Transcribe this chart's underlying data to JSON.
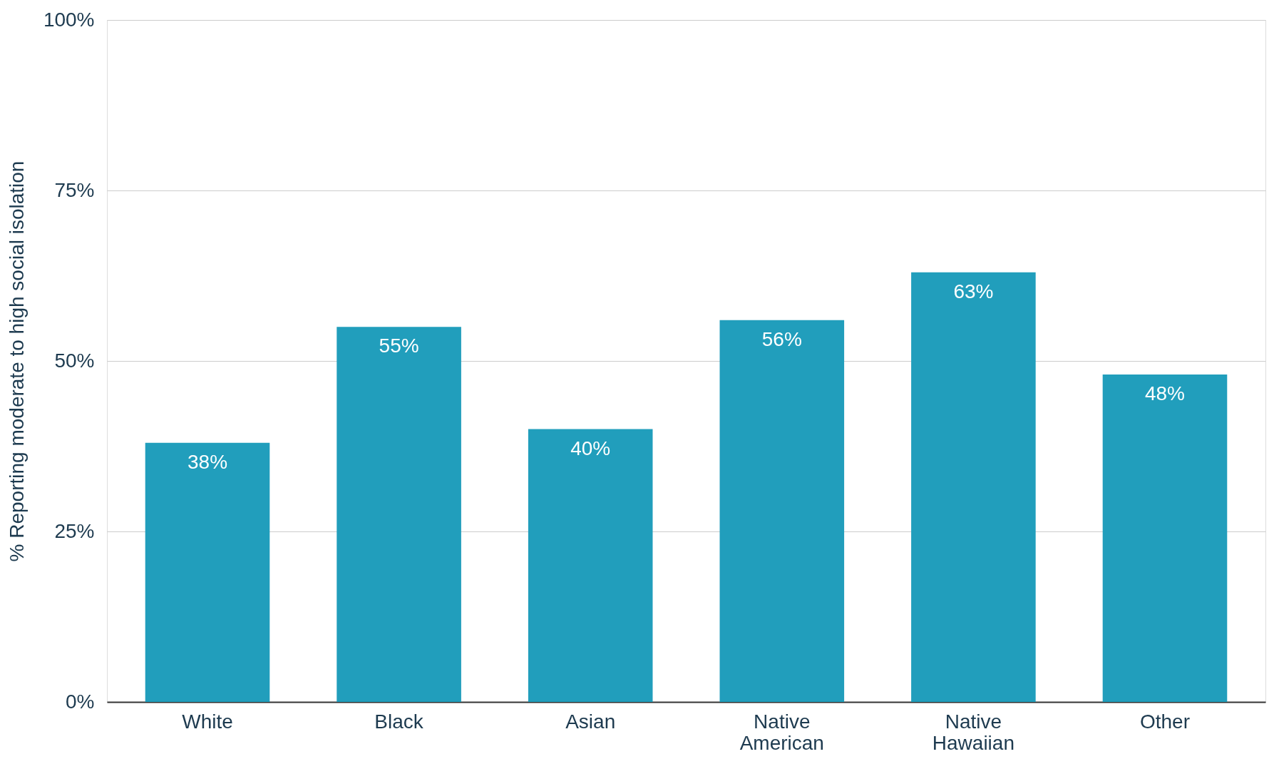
{
  "chart_data": {
    "type": "bar",
    "ylabel": "% Reporting moderate to high social isolation",
    "categories": [
      "White",
      "Black",
      "Asian",
      "Native American",
      "Native Hawaiian",
      "Other"
    ],
    "values": [
      38,
      55,
      40,
      56,
      63,
      48
    ],
    "value_labels": [
      "38%",
      "55%",
      "40%",
      "56%",
      "63%",
      "48%"
    ],
    "color": "#219ebc",
    "ylim": [
      0,
      100
    ],
    "yticks": [
      {
        "value": 0,
        "label": "0%"
      },
      {
        "value": 25,
        "label": "25%"
      },
      {
        "value": 50,
        "label": "50%"
      },
      {
        "value": 75,
        "label": "75%"
      },
      {
        "value": 100,
        "label": "100%"
      }
    ],
    "grid": "y"
  }
}
